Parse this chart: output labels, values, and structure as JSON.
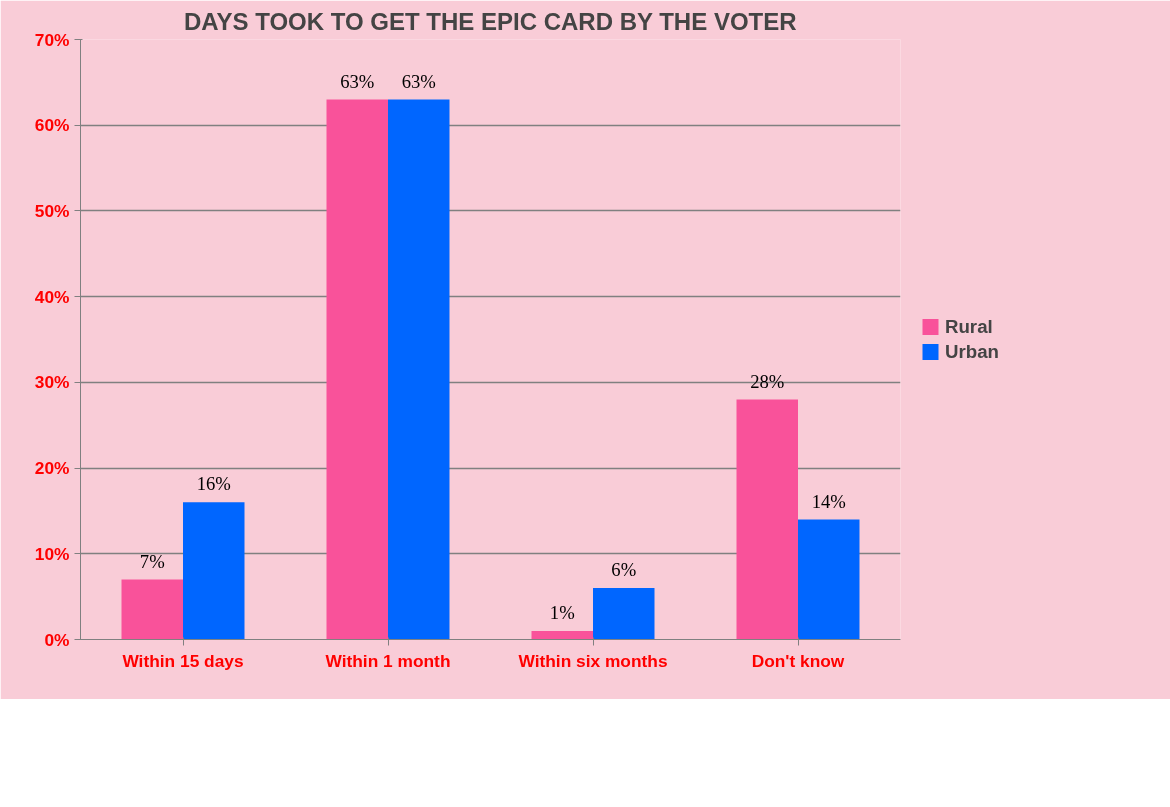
{
  "chart_data": {
    "type": "bar",
    "title": "DAYS TOOK TO GET THE EPIC CARD BY THE VOTER",
    "categories": [
      "Within 15 days",
      "Within 1 month",
      "Within six months",
      "Don't know"
    ],
    "series": [
      {
        "name": "Rural",
        "color": "#f9529a",
        "values": [
          7,
          63,
          1,
          28
        ],
        "value_labels": [
          "7%",
          "63%",
          "1%",
          "28%"
        ]
      },
      {
        "name": "Urban",
        "color": "#0066ff",
        "values": [
          16,
          63,
          6,
          14
        ],
        "value_labels": [
          "16%",
          "63%",
          "6%",
          "14%"
        ]
      }
    ],
    "ylim": [
      0,
      70
    ],
    "yticks": [
      {
        "value": 0,
        "label": "0%"
      },
      {
        "value": 10,
        "label": "10%"
      },
      {
        "value": 20,
        "label": "20%"
      },
      {
        "value": 30,
        "label": "30%"
      },
      {
        "value": 40,
        "label": "40%"
      },
      {
        "value": 50,
        "label": "50%"
      },
      {
        "value": 60,
        "label": "60%"
      },
      {
        "value": 70,
        "label": "70%"
      }
    ],
    "grid": "y",
    "legend": "right"
  }
}
